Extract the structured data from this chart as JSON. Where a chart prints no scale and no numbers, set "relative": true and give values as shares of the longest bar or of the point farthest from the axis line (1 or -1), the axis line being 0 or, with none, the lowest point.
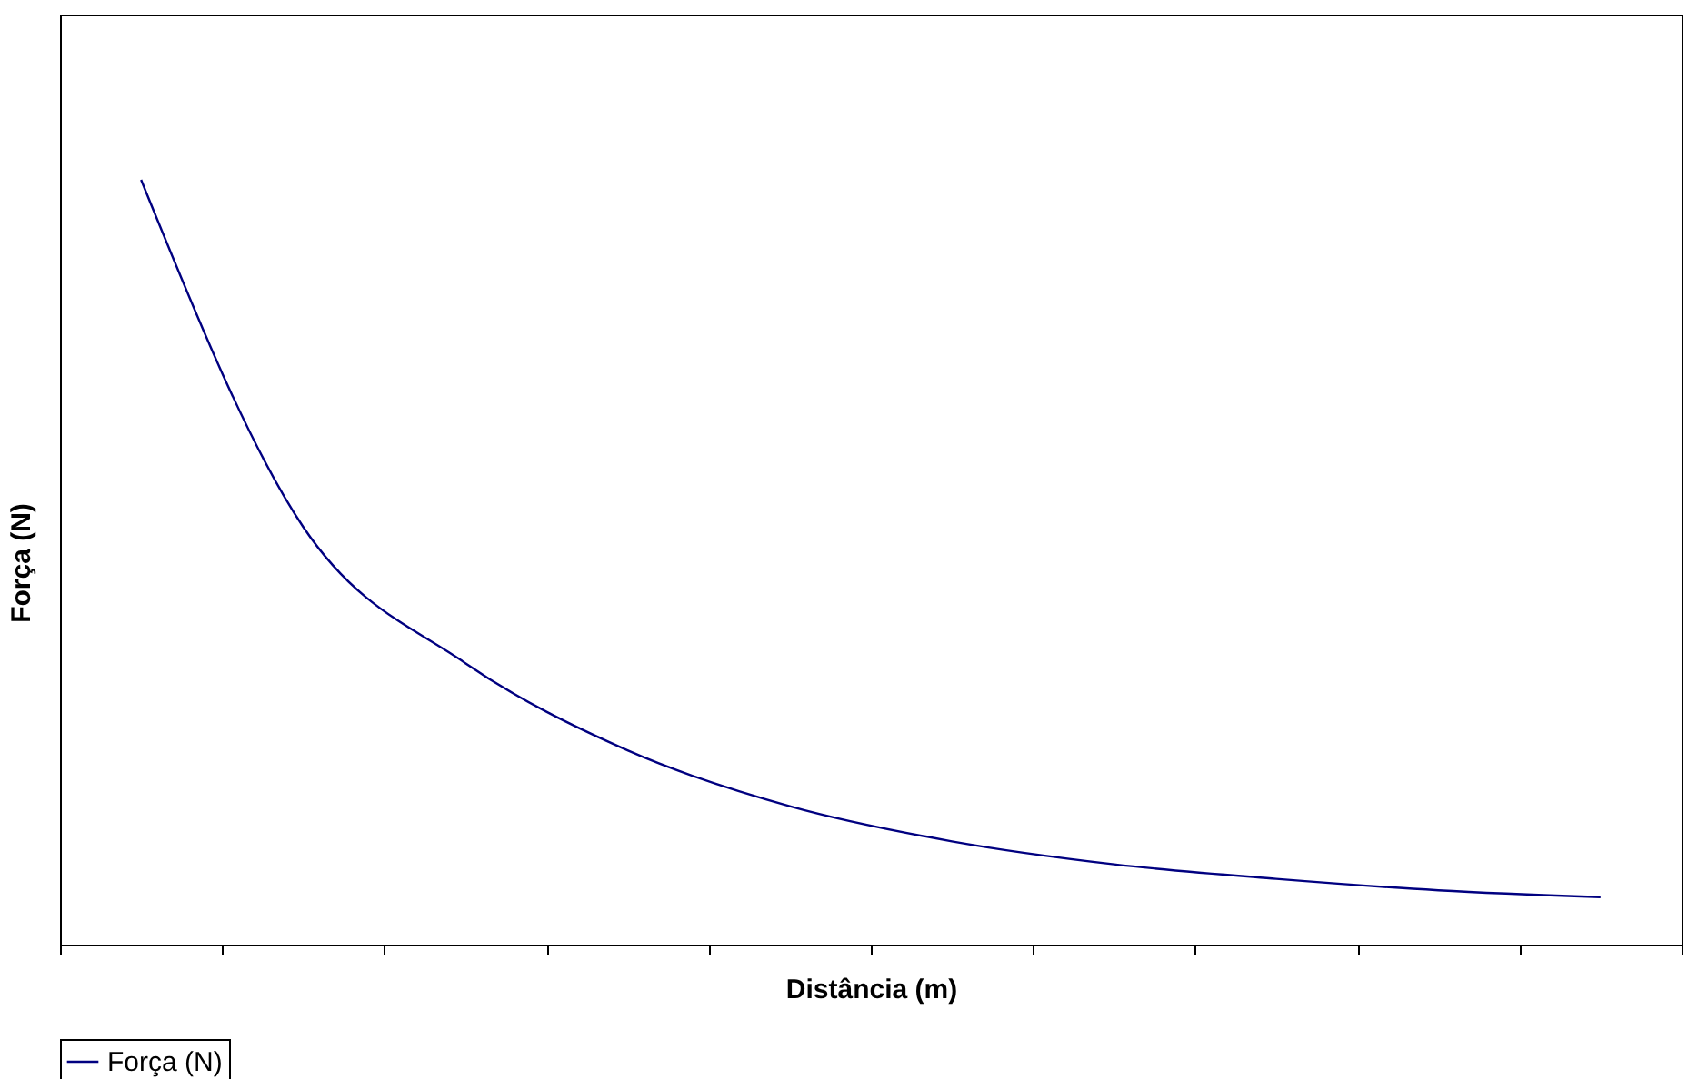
{
  "chart_data": {
    "type": "line",
    "relative": true,
    "xlabel": "Distância (m)",
    "ylabel": "Força (N)",
    "categories": [
      null,
      null,
      null,
      null,
      null,
      null,
      null,
      null,
      null,
      null
    ],
    "series": [
      {
        "name": "Força (N)",
        "color": "#000080",
        "values": [
          1,
          0.546,
          0.368,
          0.254,
          0.181,
          0.135,
          0.105,
          0.086,
          0.071,
          0.062
        ]
      }
    ],
    "legend": "bottom",
    "grid": false,
    "marker": "none"
  }
}
